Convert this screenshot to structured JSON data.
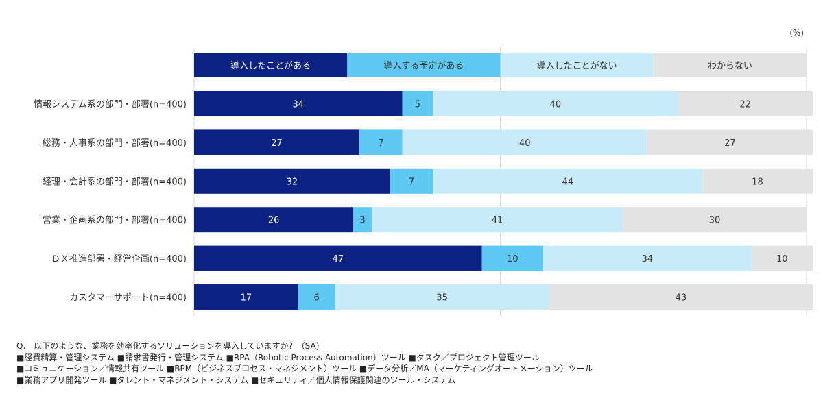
{
  "unit_label": "(%)",
  "chart_data": {
    "type": "bar",
    "orientation": "horizontal",
    "stacked": true,
    "xlim": [
      0,
      100
    ],
    "categories": [
      "情報システム系の部門・部署(n=400)",
      "総務・人事系の部門・部署(n=400)",
      "経理・会計系の部門・部署(n=400)",
      "営業・企画系の部門・部署(n=400)",
      "ＤＸ推進部署・経営企画(n=400)",
      "カスタマーサポート(n=400)"
    ],
    "series": [
      {
        "name": "導入したことがある",
        "color": "#0b2282",
        "label_color": "#ffffff",
        "values": [
          34,
          27,
          32,
          26,
          47,
          17
        ]
      },
      {
        "name": "導入する予定がある",
        "color": "#5ec9f2",
        "label_color": "#333333",
        "values": [
          5,
          7,
          7,
          3,
          10,
          6
        ]
      },
      {
        "name": "導入したことがない",
        "color": "#c8ebfa",
        "label_color": "#333333",
        "values": [
          40,
          40,
          44,
          41,
          34,
          35
        ]
      },
      {
        "name": "わからない",
        "color": "#e3e3e3",
        "label_color": "#333333",
        "values": [
          22,
          27,
          18,
          30,
          10,
          43
        ]
      }
    ],
    "legend_position": "top",
    "grid": true
  },
  "notes": [
    "Q.　以下のような、業務を効率化するソリューションを導入していますか？（SA)",
    "■経費精算・管理システム ■請求書発行・管理システム ■RPA（Robotic Process Automation）ツール ■タスク／プロジェクト管理ツール",
    "■コミュニケーション／情報共有ツール ■BPM（ビジネスプロセス・マネジメント）ツール ■データ分析／MA（マーケティングオートメーション）ツール",
    "■業務アプリ開発ツール ■タレント・マネジメント・システム ■セキュリティ／個人情報保護関連のツール・システム"
  ]
}
